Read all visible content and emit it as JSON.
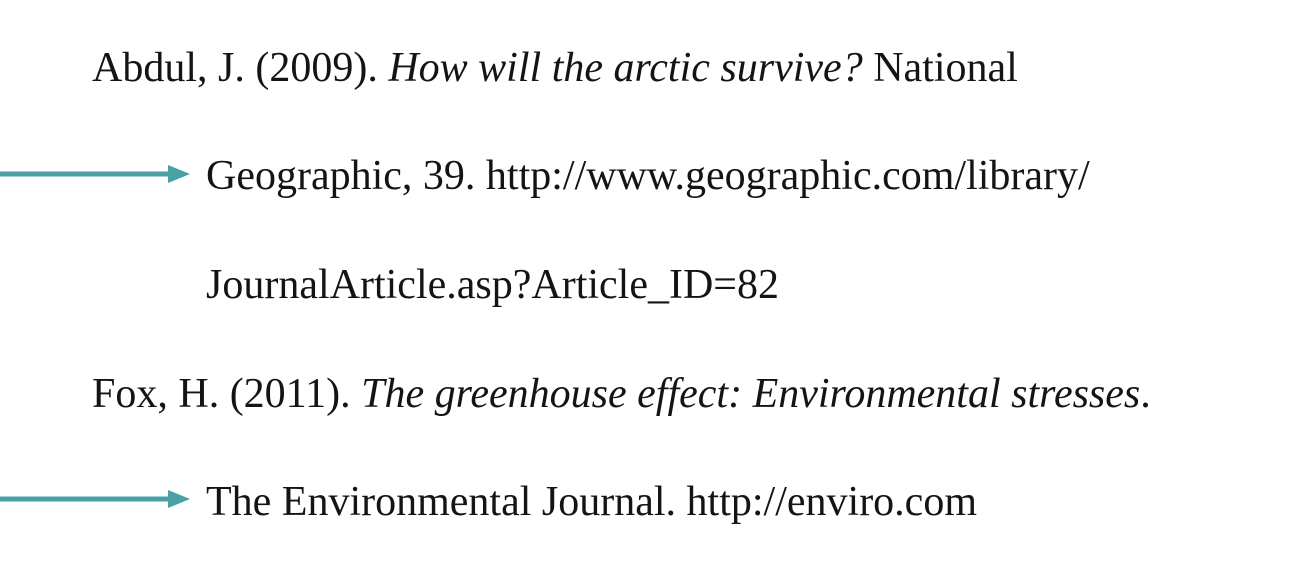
{
  "references": [
    {
      "line1": {
        "pre": "Abdul, J. (2009). ",
        "title": "How will the arctic survive?",
        "post": " National"
      },
      "line2": "Geographic, 39. http://www.geographic.com/library/",
      "line3": "JournalArticle.asp?Article_ID=82"
    },
    {
      "line1": {
        "pre": "Fox, H. (2011). ",
        "title": "The greenhouse effect: Environmental stresses",
        "post": "."
      },
      "line2": "The Environmental Journal. http://enviro.com"
    }
  ],
  "colors": {
    "arrow": "#4aa0a5",
    "text": "#141414"
  },
  "icons": [
    "right-arrow-icon",
    "right-arrow-icon"
  ]
}
